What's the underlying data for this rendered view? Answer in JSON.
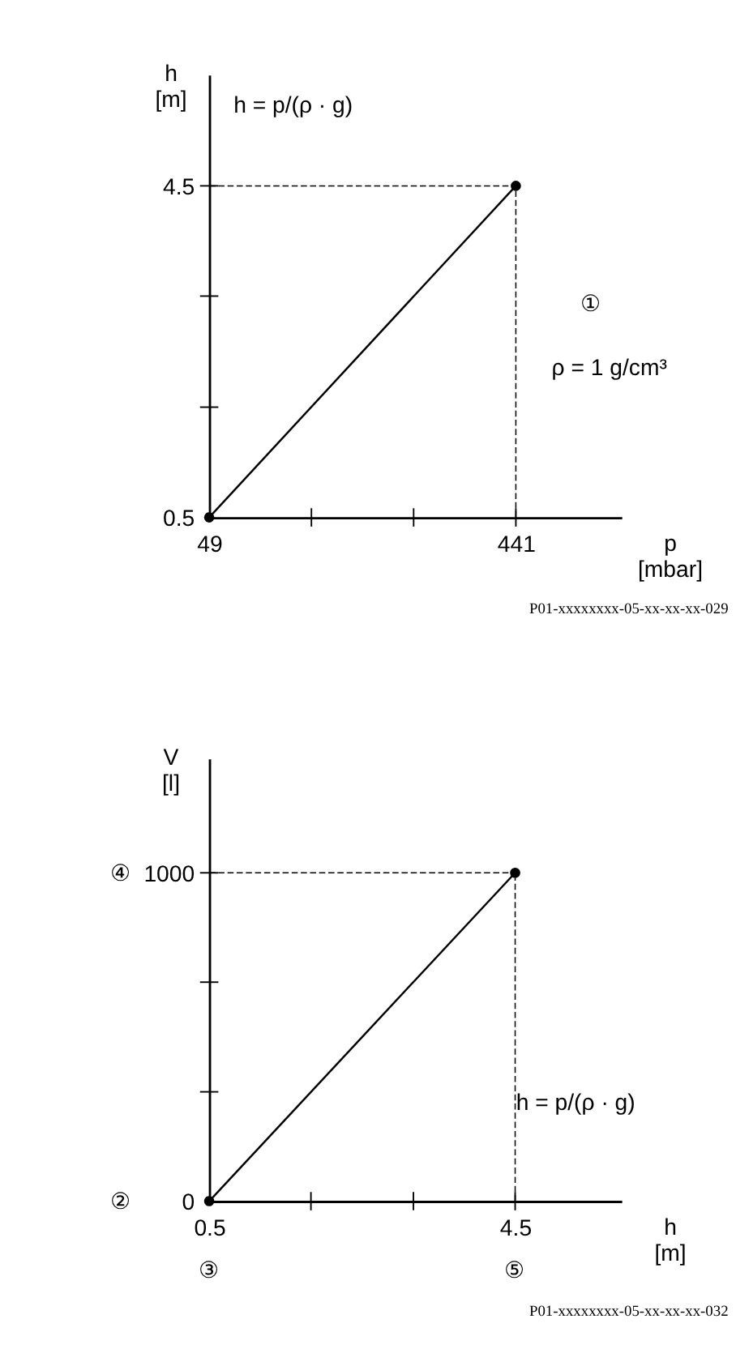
{
  "chart_data": [
    {
      "type": "line",
      "xlabel": "p\n[mbar]",
      "ylabel": "h\n[m]",
      "x": [
        49,
        441
      ],
      "series": [
        {
          "color": "#000000",
          "values": [
            0.5,
            4.5
          ]
        }
      ],
      "xlim": [
        49,
        576
      ],
      "ylim": [
        0.5,
        5.84
      ],
      "xticks": [
        49,
        {
          "value": 179.67,
          "label": null
        },
        {
          "value": 310.33,
          "label": null
        },
        441
      ],
      "yticks": [
        0.5,
        {
          "value": 1.83,
          "label": null
        },
        {
          "value": 3.17,
          "label": null
        },
        4.5
      ],
      "ref_lines": [
        {
          "axis": "y",
          "value": 4.5,
          "line_style": "dashed",
          "color": "#000000"
        },
        {
          "axis": "x",
          "value": 441,
          "line_style": "dashed",
          "color": "#000000"
        }
      ],
      "marker": "circle",
      "grid": false,
      "annotations": [
        "h = p/(ρ · g)",
        "①",
        "ρ = 1 g/cm³",
        "P01-xxxxxxxx-05-xx-xx-xx-029"
      ]
    },
    {
      "type": "line",
      "xlabel": "h\n[m]",
      "ylabel": "V\n[l]",
      "x": [
        0.5,
        4.5
      ],
      "series": [
        {
          "color": "#000000",
          "values": [
            0,
            1000
          ]
        }
      ],
      "xlim": [
        0.5,
        5.89
      ],
      "ylim": [
        0,
        1348
      ],
      "xticks": [
        0.5,
        {
          "value": 1.83,
          "label": null
        },
        {
          "value": 3.17,
          "label": null
        },
        4.5
      ],
      "yticks": [
        0,
        {
          "value": 333,
          "label": null
        },
        {
          "value": 667,
          "label": null
        },
        1000
      ],
      "ref_lines": [
        {
          "axis": "y",
          "value": 1000,
          "line_style": "dashed",
          "color": "#000000"
        },
        {
          "axis": "x",
          "value": 4.5,
          "line_style": "dashed",
          "color": "#000000"
        }
      ],
      "marker": "circle",
      "grid": false,
      "annotations": [
        "h = p/(ρ · g)",
        "④",
        "②",
        "③",
        "⑤",
        "P01-xxxxxxxx-05-xx-xx-xx-032"
      ]
    }
  ]
}
